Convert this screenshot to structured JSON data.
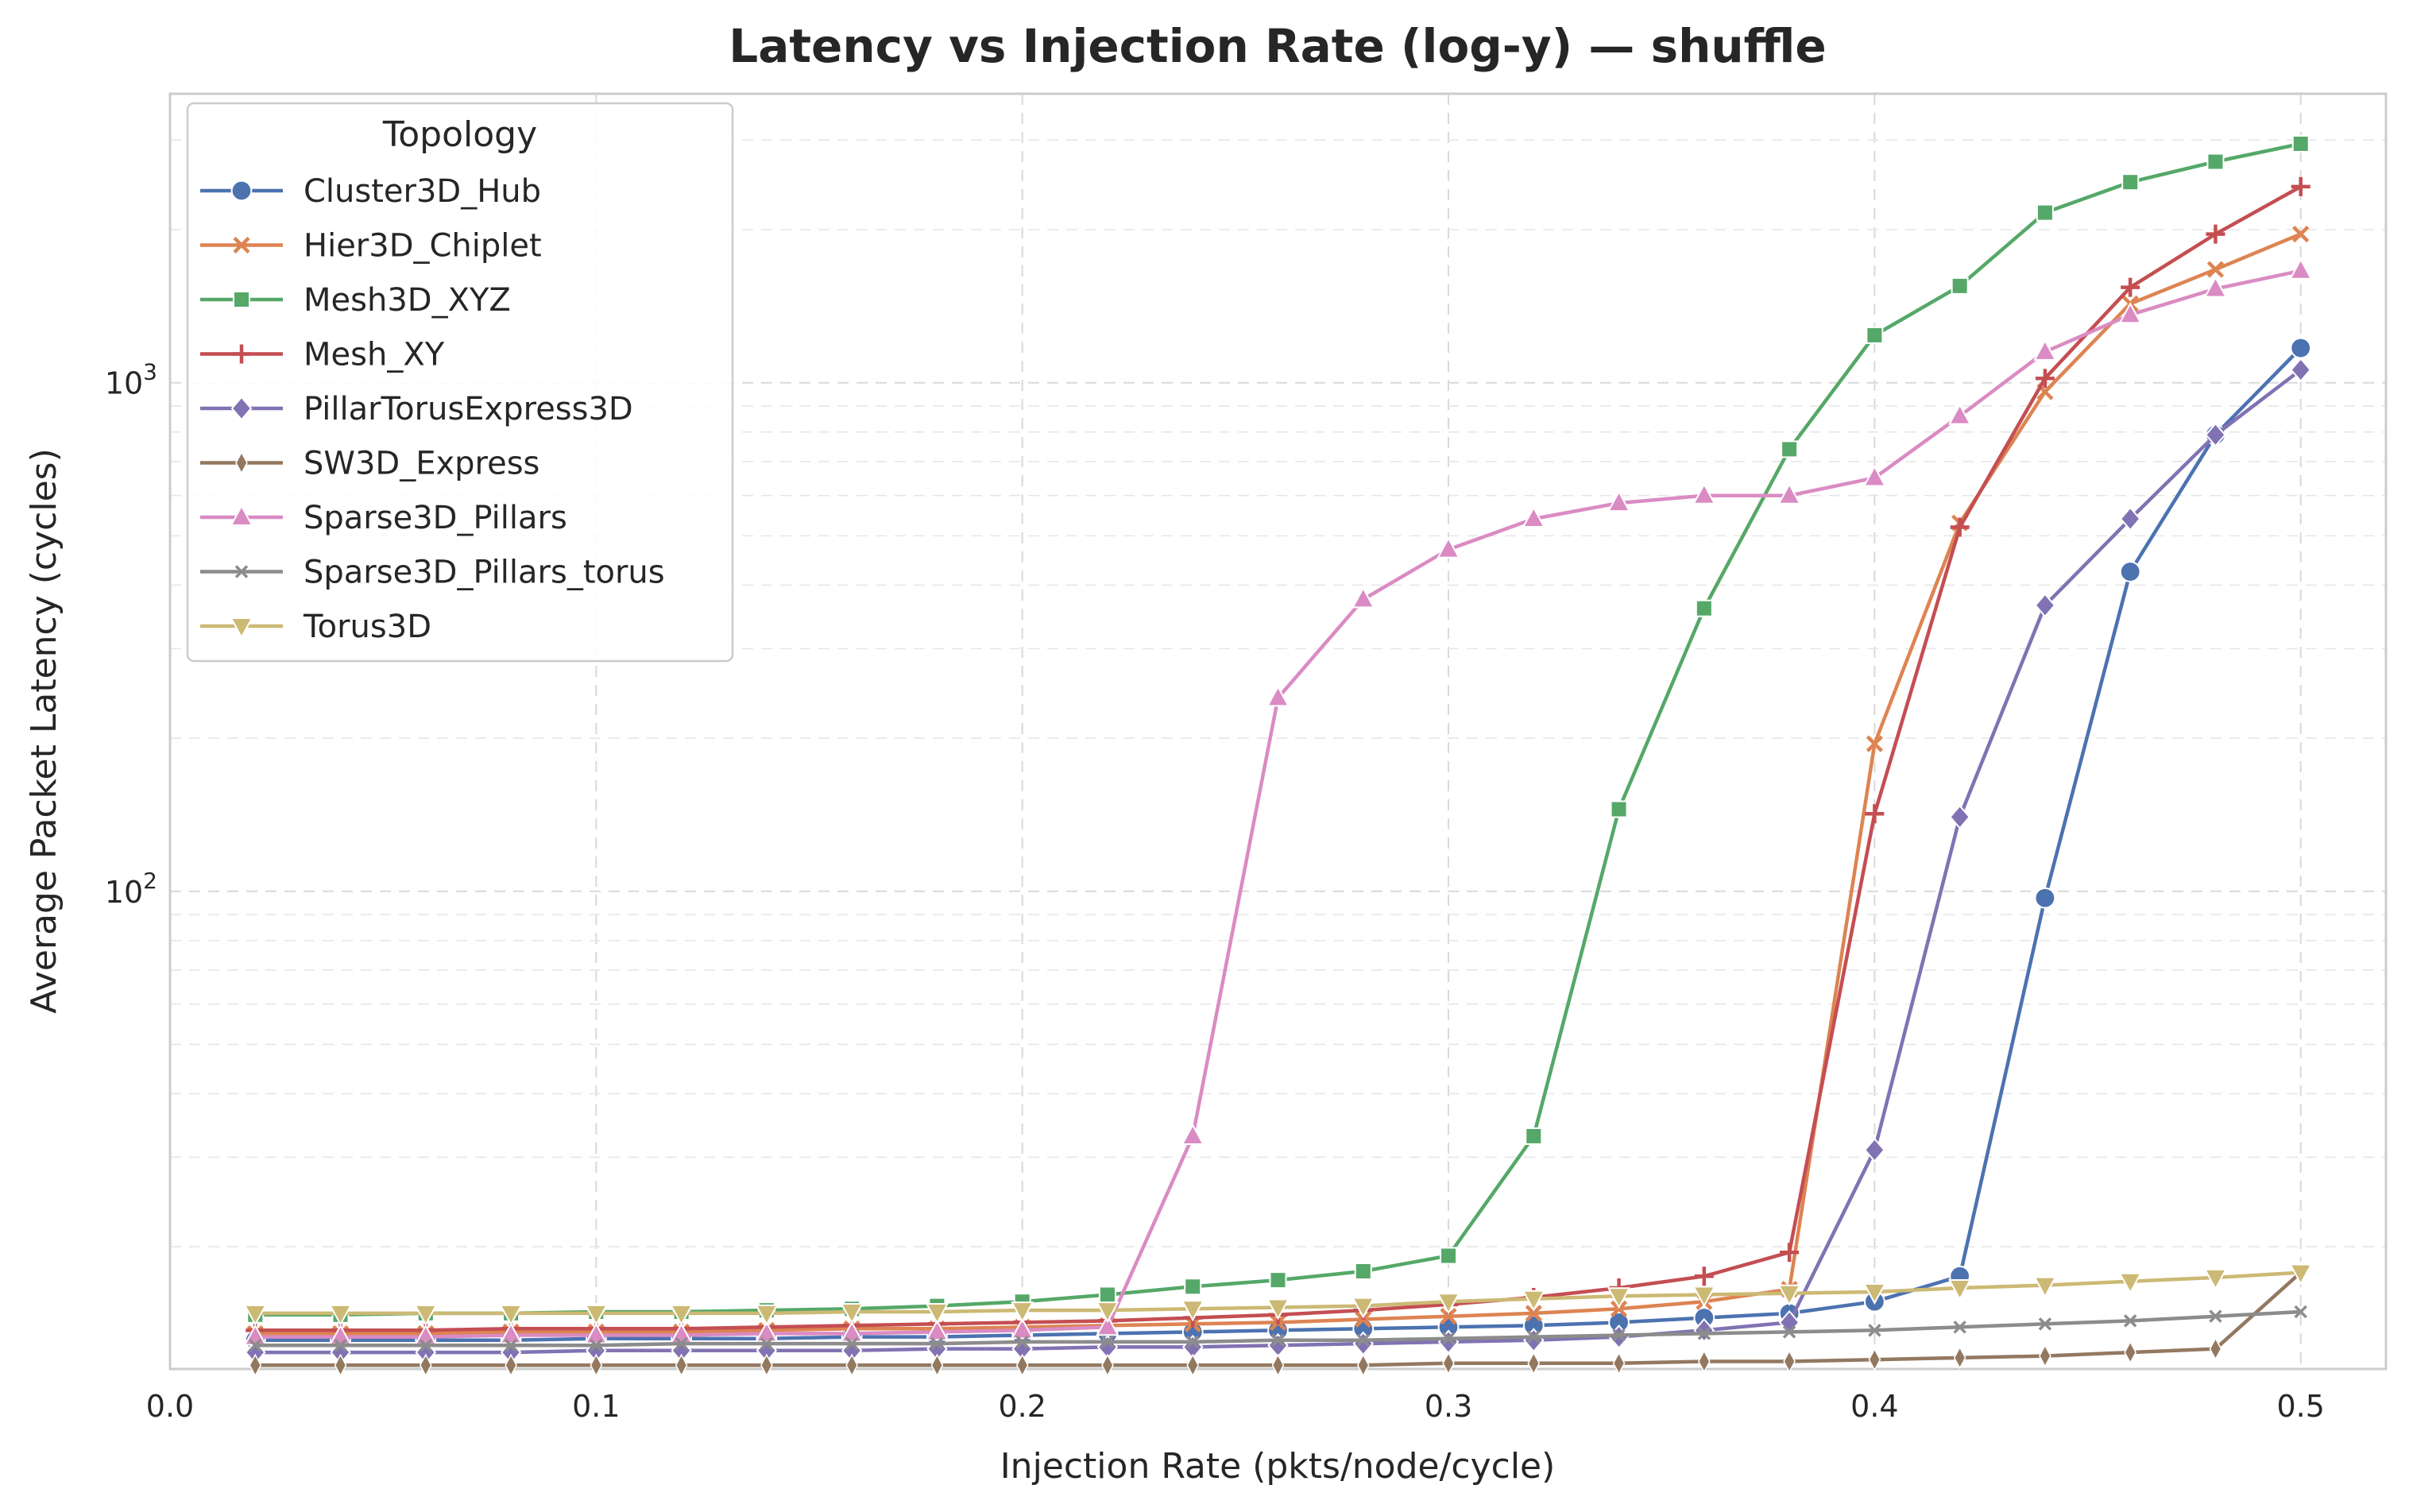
{
  "chart_data": {
    "type": "line",
    "title": "Latency vs Injection Rate (log-y) — shuffle",
    "xlabel": "Injection Rate (pkts/node/cycle)",
    "ylabel": "Average Packet Latency (cycles)",
    "xlim": [
      0.0,
      0.52
    ],
    "ylim": [
      11.5,
      3700
    ],
    "yscale": "log",
    "xticks": [
      0.0,
      0.1,
      0.2,
      0.3,
      0.4,
      0.5
    ],
    "xtick_labels": [
      "0.0",
      "0.1",
      "0.2",
      "0.3",
      "0.4",
      "0.5"
    ],
    "yticks": [
      100,
      1000
    ],
    "ytick_base": "10",
    "ytick_exponents": [
      "2",
      "3"
    ],
    "grid": true,
    "legend_title": "Topology",
    "legend_position": "top-left",
    "x": [
      0.02,
      0.04,
      0.06,
      0.08,
      0.1,
      0.12,
      0.14,
      0.16,
      0.18,
      0.2,
      0.22,
      0.24,
      0.26,
      0.28,
      0.3,
      0.32,
      0.34,
      0.36,
      0.38,
      0.4,
      0.42,
      0.44,
      0.46,
      0.48,
      0.5
    ],
    "series": [
      {
        "name": "Cluster3D_Hub",
        "color": "#4c72b0",
        "marker": "circle",
        "values": [
          13.1,
          13.1,
          13.1,
          13.1,
          13.2,
          13.2,
          13.2,
          13.3,
          13.3,
          13.4,
          13.5,
          13.6,
          13.7,
          13.8,
          13.9,
          14.0,
          14.2,
          14.5,
          14.8,
          15.6,
          17.5,
          97,
          425,
          790,
          1170
        ]
      },
      {
        "name": "Hier3D_Chiplet",
        "color": "#dd8452",
        "marker": "x",
        "values": [
          13.5,
          13.5,
          13.5,
          13.6,
          13.6,
          13.6,
          13.7,
          13.8,
          13.8,
          13.9,
          14.0,
          14.1,
          14.2,
          14.4,
          14.6,
          14.8,
          15.1,
          15.6,
          16.5,
          195,
          530,
          960,
          1430,
          1670,
          1960
        ]
      },
      {
        "name": "Mesh3D_XYZ",
        "color": "#55a868",
        "marker": "square",
        "values": [
          14.7,
          14.7,
          14.8,
          14.8,
          14.9,
          14.9,
          15.0,
          15.1,
          15.3,
          15.6,
          16.1,
          16.7,
          17.2,
          17.9,
          19.2,
          33,
          145,
          360,
          740,
          1240,
          1550,
          2160,
          2480,
          2720,
          2950
        ]
      },
      {
        "name": "Mesh_XY",
        "color": "#c44e52",
        "marker": "plus",
        "values": [
          13.7,
          13.7,
          13.7,
          13.8,
          13.8,
          13.8,
          13.9,
          14.0,
          14.1,
          14.2,
          14.3,
          14.5,
          14.7,
          15.0,
          15.4,
          15.9,
          16.6,
          17.5,
          19.5,
          142,
          520,
          1020,
          1540,
          1960,
          2430
        ]
      },
      {
        "name": "PillarTorusExpress3D",
        "color": "#8172b3",
        "marker": "diamond",
        "values": [
          12.4,
          12.4,
          12.4,
          12.4,
          12.5,
          12.5,
          12.5,
          12.5,
          12.6,
          12.6,
          12.7,
          12.7,
          12.8,
          12.9,
          13.0,
          13.1,
          13.3,
          13.7,
          14.2,
          31,
          140,
          365,
          540,
          790,
          1060
        ]
      },
      {
        "name": "SW3D_Express",
        "color": "#937860",
        "marker": "thin-diamond",
        "values": [
          11.7,
          11.7,
          11.7,
          11.7,
          11.7,
          11.7,
          11.7,
          11.7,
          11.7,
          11.7,
          11.7,
          11.7,
          11.7,
          11.7,
          11.8,
          11.8,
          11.8,
          11.9,
          11.9,
          12.0,
          12.1,
          12.2,
          12.4,
          12.6,
          17.8
        ]
      },
      {
        "name": "Sparse3D_Pillars",
        "color": "#da8bc3",
        "marker": "triangle-up",
        "values": [
          13.3,
          13.3,
          13.3,
          13.4,
          13.4,
          13.4,
          13.5,
          13.5,
          13.6,
          13.7,
          13.9,
          33,
          240,
          375,
          470,
          540,
          580,
          600,
          600,
          650,
          860,
          1150,
          1360,
          1530,
          1660
        ]
      },
      {
        "name": "Sparse3D_Pillars_torus",
        "color": "#8c8c8c",
        "marker": "x-thin",
        "values": [
          12.8,
          12.8,
          12.8,
          12.8,
          12.8,
          12.9,
          12.9,
          12.9,
          12.9,
          13.0,
          13.0,
          13.0,
          13.1,
          13.1,
          13.2,
          13.3,
          13.4,
          13.5,
          13.6,
          13.7,
          13.9,
          14.1,
          14.3,
          14.6,
          14.9
        ]
      },
      {
        "name": "Torus3D",
        "color": "#ccb974",
        "marker": "triangle-down",
        "values": [
          14.8,
          14.8,
          14.8,
          14.8,
          14.8,
          14.8,
          14.8,
          14.9,
          14.9,
          15.0,
          15.0,
          15.1,
          15.2,
          15.3,
          15.6,
          15.8,
          16.0,
          16.1,
          16.2,
          16.3,
          16.6,
          16.8,
          17.1,
          17.4,
          17.8
        ]
      }
    ]
  }
}
